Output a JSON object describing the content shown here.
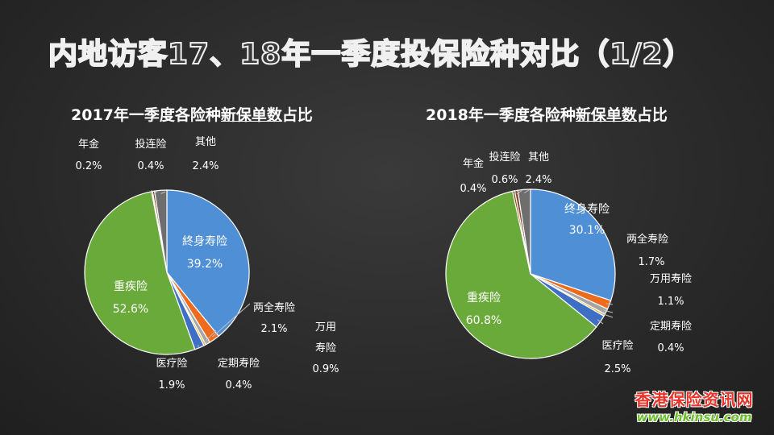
{
  "slide": {
    "title": "内地访客17、18年一季度投保险种对比（1/2）"
  },
  "watermark": {
    "name": "香港保险资讯网",
    "url": "www.hkinsu.com"
  },
  "colors": {
    "終身寿险": "#4f8fd6",
    "两全寿险": "#ee6b1e",
    "万用寿险": "#a5a5a5",
    "定期寿险": "#f0b323",
    "医疗险": "#3f6fc4",
    "重疾险": "#6aaa3a",
    "年金": "#7a3b12",
    "投连险": "#8c4a2f",
    "其他": "#6e6e6e"
  },
  "chart_data": [
    {
      "type": "pie",
      "title_prefix": "2017年一季度各险种",
      "title_underlined": "新保单数",
      "title_suffix": "占比",
      "slices": [
        {
          "label": "終身寿险",
          "value": 39.2,
          "value_label": "39.2%"
        },
        {
          "label": "两全寿险",
          "value": 2.1,
          "value_label": "2.1%"
        },
        {
          "label": "万用寿险",
          "label_line1": "万用",
          "label_line2": "寿险",
          "value": 0.9,
          "value_label": "0.9%"
        },
        {
          "label": "定期寿险",
          "value": 0.4,
          "value_label": "0.4%"
        },
        {
          "label": "医疗险",
          "value": 1.9,
          "value_label": "1.9%"
        },
        {
          "label": "重疾险",
          "value": 52.6,
          "value_label": "52.6%"
        },
        {
          "label": "年金",
          "value": 0.2,
          "value_label": "0.2%"
        },
        {
          "label": "投连险",
          "value": 0.4,
          "value_label": "0.4%"
        },
        {
          "label": "其他",
          "value": 2.4,
          "value_label": "2.4%"
        }
      ]
    },
    {
      "type": "pie",
      "title_prefix": "2018年一季度各险种",
      "title_underlined": "新保单数",
      "title_suffix": "占比",
      "slices": [
        {
          "label": "终身寿险",
          "value": 30.1,
          "value_label": "30.1%"
        },
        {
          "label": "两全寿险",
          "value": 1.7,
          "value_label": "1.7%"
        },
        {
          "label": "万用寿险",
          "value": 1.1,
          "value_label": "1.1%"
        },
        {
          "label": "定期寿险",
          "value": 0.4,
          "value_label": "0.4%"
        },
        {
          "label": "医疗险",
          "value": 2.5,
          "value_label": "2.5%"
        },
        {
          "label": "重疾险",
          "value": 60.8,
          "value_label": "60.8%"
        },
        {
          "label": "年金",
          "value": 0.4,
          "value_label": "0.4%"
        },
        {
          "label": "投连险",
          "value": 0.6,
          "value_label": "0.6%"
        },
        {
          "label": "其他",
          "value": 2.4,
          "value_label": "2.4%"
        }
      ]
    }
  ]
}
